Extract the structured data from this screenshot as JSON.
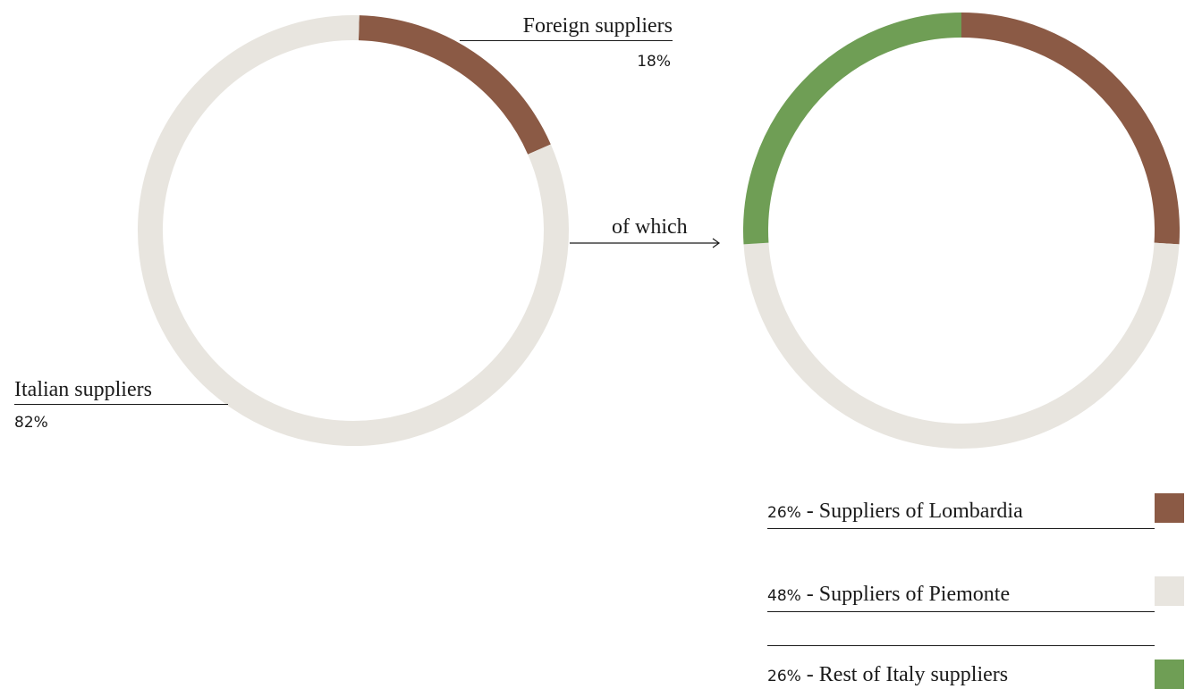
{
  "chart_data": [
    {
      "type": "pie",
      "title": "",
      "slices": [
        {
          "label": "Foreign suppliers",
          "value": 18,
          "display": "18%",
          "color": "#8b5a45"
        },
        {
          "label": "Italian suppliers",
          "value": 82,
          "display": "82%",
          "color": "#e8e5df"
        }
      ]
    },
    {
      "type": "pie",
      "title": "",
      "slices": [
        {
          "label": "Suppliers of Lombardia",
          "value": 26,
          "display": "26%",
          "color": "#8b5a45"
        },
        {
          "label": "Suppliers of Piemonte",
          "value": 48,
          "display": "48%",
          "color": "#e8e5df"
        },
        {
          "label": "Rest of Italy suppliers",
          "value": 26,
          "display": "26%",
          "color": "#6f9e55"
        }
      ]
    }
  ],
  "connector_label": "of which",
  "legend": [
    {
      "percent": "26%",
      "separator": " - ",
      "text": "Suppliers of Lombardia",
      "color": "#8b5a45"
    },
    {
      "percent": "48%",
      "separator": " - ",
      "text": "Suppliers of Piemonte",
      "color": "#e8e5df"
    },
    {
      "percent": "26%",
      "separator": " - ",
      "text": "Rest of Italy suppliers",
      "color": "#6f9e55"
    }
  ]
}
